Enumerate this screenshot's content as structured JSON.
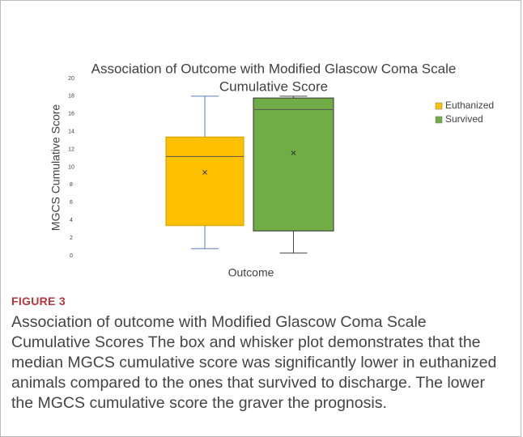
{
  "chart_data": {
    "type": "box",
    "title": [
      "Association of Outcome with Modified Glascow Coma Scale",
      "Cumulative Score"
    ],
    "ylabel": "MGCS Cumulative Score",
    "xlabel": "Outcome",
    "ylim": [
      0,
      20
    ],
    "yticks": [
      0,
      2,
      4,
      6,
      8,
      10,
      12,
      14,
      16,
      18,
      20
    ],
    "legend": "top-right",
    "series": [
      {
        "name": "Euthanized",
        "color": "#ffc000",
        "min": 0.8,
        "q1": 3.4,
        "median": 11.2,
        "q3": 13.4,
        "max": 18,
        "mean": 9.4
      },
      {
        "name": "Survived",
        "color": "#70ad47",
        "min": 0.3,
        "q1": 2.8,
        "median": 16.5,
        "q3": 17.8,
        "max": 18,
        "mean": 11.6
      }
    ]
  },
  "figure": {
    "label": "FIGURE 3",
    "caption": "Association of outcome with Modified Glascow Coma Scale Cumulative Scores The box and whisker plot demonstrates that the median MGCS cumulative score was significantly lower in euthanized animals compared to the ones that survived to discharge. The lower the MGCS cumulative score the graver the prognosis."
  }
}
